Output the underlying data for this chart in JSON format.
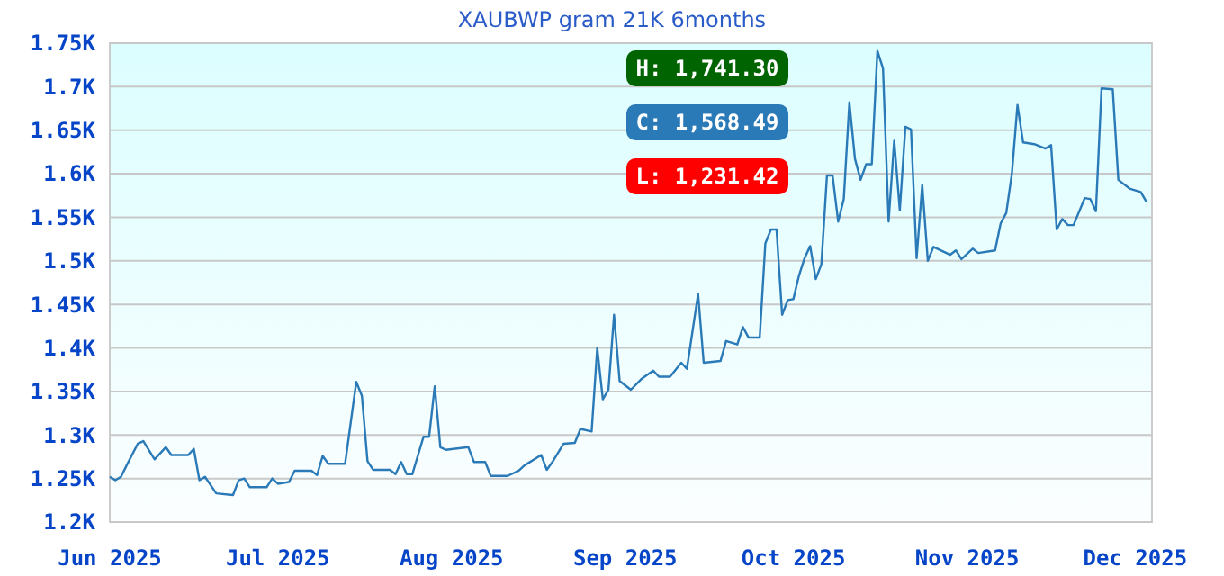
{
  "chart_data": {
    "type": "line",
    "title": "XAUBWP gram 21K 6months",
    "annotations": [
      "H: 1,741.30",
      "C: 1,568.49",
      "L: 1,231.42"
    ],
    "xlim": [
      "2025-06-01",
      "2025-12-04"
    ],
    "xticks": [
      {
        "value": "2025-06-01",
        "label": "Jun 2025"
      },
      {
        "value": "2025-07-01",
        "label": "Jul 2025"
      },
      {
        "value": "2025-08-01",
        "label": "Aug 2025"
      },
      {
        "value": "2025-09-01",
        "label": "Sep 2025"
      },
      {
        "value": "2025-10-01",
        "label": "Oct 2025"
      },
      {
        "value": "2025-11-01",
        "label": "Nov 2025"
      },
      {
        "value": "2025-12-01",
        "label": "Dec 2025"
      }
    ],
    "ylim": [
      1200,
      1750
    ],
    "yticks": [
      {
        "value": 1200,
        "label": "1.2K"
      },
      {
        "value": 1250,
        "label": "1.25K"
      },
      {
        "value": 1300,
        "label": "1.3K"
      },
      {
        "value": 1350,
        "label": "1.35K"
      },
      {
        "value": 1400,
        "label": "1.4K"
      },
      {
        "value": 1450,
        "label": "1.45K"
      },
      {
        "value": 1500,
        "label": "1.5K"
      },
      {
        "value": 1550,
        "label": "1.55K"
      },
      {
        "value": 1600,
        "label": "1.6K"
      },
      {
        "value": 1650,
        "label": "1.65K"
      },
      {
        "value": 1700,
        "label": "1.7K"
      },
      {
        "value": 1750,
        "label": "1.75K"
      }
    ],
    "grid": "y",
    "marker": "none",
    "line_style": "solid",
    "series": [
      {
        "color": "#2a7ab8",
        "x": [
          "2025-06-01",
          "2025-06-02",
          "2025-06-03",
          "2025-06-04",
          "2025-06-06",
          "2025-06-07",
          "2025-06-09",
          "2025-06-11",
          "2025-06-12",
          "2025-06-15",
          "2025-06-16",
          "2025-06-17",
          "2025-06-18",
          "2025-06-20",
          "2025-06-23",
          "2025-06-24",
          "2025-06-25",
          "2025-06-26",
          "2025-06-29",
          "2025-06-30",
          "2025-07-01",
          "2025-07-03",
          "2025-07-04",
          "2025-07-07",
          "2025-07-08",
          "2025-07-09",
          "2025-07-10",
          "2025-07-13",
          "2025-07-14",
          "2025-07-15",
          "2025-07-16",
          "2025-07-17",
          "2025-07-18",
          "2025-07-21",
          "2025-07-22",
          "2025-07-23",
          "2025-07-24",
          "2025-07-25",
          "2025-07-27",
          "2025-07-28",
          "2025-07-29",
          "2025-07-30",
          "2025-07-31",
          "2025-08-04",
          "2025-08-05",
          "2025-08-07",
          "2025-08-08",
          "2025-08-11",
          "2025-08-13",
          "2025-08-14",
          "2025-08-17",
          "2025-08-18",
          "2025-08-19",
          "2025-08-21",
          "2025-08-23",
          "2025-08-24",
          "2025-08-26",
          "2025-08-27",
          "2025-08-28",
          "2025-08-29",
          "2025-08-30",
          "2025-08-31",
          "2025-09-02",
          "2025-09-04",
          "2025-09-06",
          "2025-09-07",
          "2025-09-09",
          "2025-09-11",
          "2025-09-12",
          "2025-09-14",
          "2025-09-15",
          "2025-09-18",
          "2025-09-19",
          "2025-09-21",
          "2025-09-22",
          "2025-09-23",
          "2025-09-25",
          "2025-09-26",
          "2025-09-27",
          "2025-09-28",
          "2025-09-29",
          "2025-09-30",
          "2025-10-01",
          "2025-10-02",
          "2025-10-03",
          "2025-10-04",
          "2025-10-05",
          "2025-10-06",
          "2025-10-07",
          "2025-10-08",
          "2025-10-09",
          "2025-10-10",
          "2025-10-11",
          "2025-10-12",
          "2025-10-13",
          "2025-10-14",
          "2025-10-15",
          "2025-10-16",
          "2025-10-17",
          "2025-10-18",
          "2025-10-19",
          "2025-10-20",
          "2025-10-21",
          "2025-10-22",
          "2025-10-23",
          "2025-10-24",
          "2025-10-25",
          "2025-10-26",
          "2025-10-29",
          "2025-10-30",
          "2025-10-31",
          "2025-11-02",
          "2025-11-03",
          "2025-11-06",
          "2025-11-07",
          "2025-11-08",
          "2025-11-09",
          "2025-11-10",
          "2025-11-11",
          "2025-11-13",
          "2025-11-15",
          "2025-11-16",
          "2025-11-17",
          "2025-11-18",
          "2025-11-19",
          "2025-11-20",
          "2025-11-22",
          "2025-11-23",
          "2025-11-24",
          "2025-11-25",
          "2025-11-27",
          "2025-11-28",
          "2025-11-30",
          "2025-12-02",
          "2025-12-03"
        ],
        "values": [
          1252,
          1248,
          1252,
          1265,
          1290,
          1293,
          1272,
          1286,
          1277,
          1277,
          1284,
          1248,
          1252,
          1233,
          1231,
          1248,
          1250,
          1240,
          1240,
          1250,
          1244,
          1246,
          1259,
          1259,
          1254,
          1276,
          1267,
          1267,
          1314,
          1361,
          1345,
          1270,
          1260,
          1260,
          1255,
          1269,
          1255,
          1255,
          1298,
          1298,
          1356,
          1286,
          1283,
          1286,
          1269,
          1269,
          1253,
          1253,
          1259,
          1265,
          1277,
          1260,
          1269,
          1290,
          1291,
          1307,
          1304,
          1400,
          1341,
          1352,
          1438,
          1362,
          1352,
          1365,
          1374,
          1367,
          1367,
          1383,
          1376,
          1462,
          1383,
          1385,
          1408,
          1404,
          1424,
          1412,
          1412,
          1520,
          1536,
          1536,
          1438,
          1455,
          1456,
          1483,
          1503,
          1517,
          1479,
          1496,
          1598,
          1598,
          1545,
          1571,
          1682,
          1617,
          1593,
          1611,
          1611,
          1741,
          1721,
          1545,
          1638,
          1558,
          1654,
          1651,
          1503,
          1587,
          1500,
          1516,
          1507,
          1512,
          1502,
          1514,
          1509,
          1512,
          1543,
          1555,
          1600,
          1679,
          1636,
          1634,
          1629,
          1633,
          1536,
          1548,
          1541,
          1541,
          1572,
          1571,
          1557,
          1698,
          1697,
          1593,
          1583,
          1579,
          1568
        ]
      }
    ]
  }
}
